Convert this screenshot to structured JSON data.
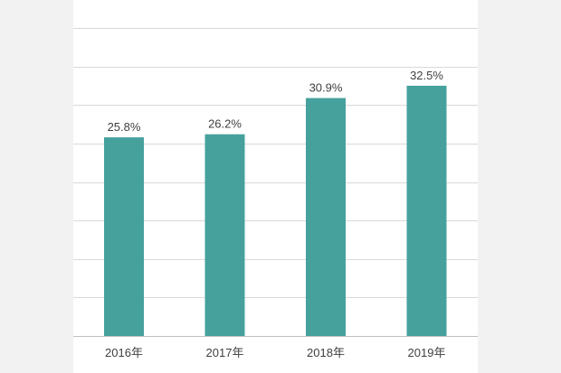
{
  "chart_data": {
    "type": "bar",
    "categories": [
      "2016年",
      "2017年",
      "2018年",
      "2019年"
    ],
    "values": [
      25.8,
      26.2,
      30.9,
      32.5
    ],
    "value_labels": [
      "25.8%",
      "26.2%",
      "30.9%",
      "32.5%"
    ],
    "title": "",
    "xlabel": "",
    "ylabel": "",
    "ylim": [
      0,
      40
    ],
    "grid": true,
    "legend": "none",
    "bar_color": "#46a19d"
  }
}
